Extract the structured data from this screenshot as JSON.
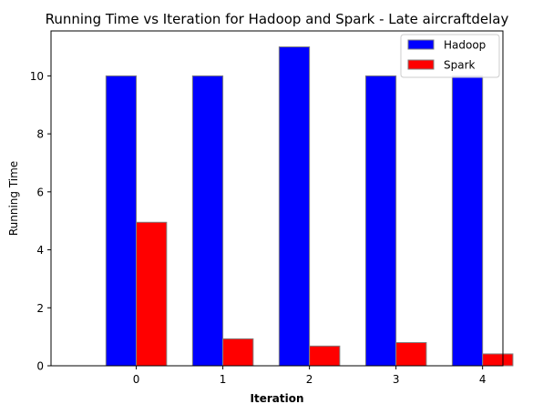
{
  "chart_data": {
    "type": "bar",
    "title": "Running Time vs Iteration for Hadoop and Spark - Late aircraftdelay",
    "xlabel": "Iteration",
    "ylabel": "Running Time",
    "categories": [
      "0",
      "1",
      "2",
      "3",
      "4"
    ],
    "yticks": [
      "0",
      "2",
      "4",
      "6",
      "8",
      "10"
    ],
    "ylim": [
      0,
      11.55
    ],
    "grid": false,
    "legend_position": "top-right",
    "series": [
      {
        "name": "Hadoop",
        "color": "#0000ff",
        "values": [
          10,
          10,
          11,
          10,
          10
        ]
      },
      {
        "name": "Spark",
        "color": "#ff0000",
        "values": [
          4.95,
          0.93,
          0.68,
          0.8,
          0.41
        ]
      }
    ],
    "bar_edge_color": "#808080"
  }
}
